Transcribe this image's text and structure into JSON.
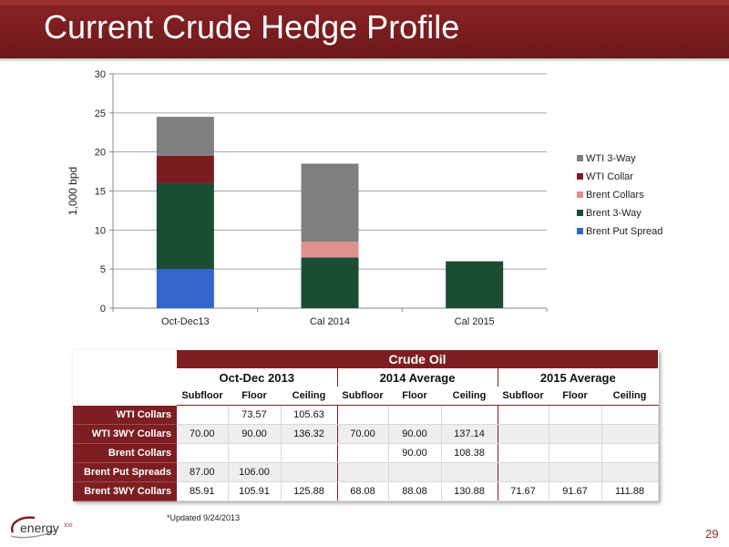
{
  "slide": {
    "title": "Current Crude Hedge Profile",
    "footnote": "*Updated 9/24/2013",
    "page_number": "29",
    "logo_text": "energy",
    "logo_suffix": "XXI"
  },
  "colors": {
    "title_bar": "#7a1d20",
    "table_header": "#7d1f22",
    "wti_3way": "#7f7f7f",
    "wti_collar": "#7a1d20",
    "brent_collars": "#e0908d",
    "brent_3way": "#1a4d33",
    "brent_put_spread": "#3366cc"
  },
  "chart_data": {
    "type": "bar",
    "stacked": true,
    "categories": [
      "Oct-Dec13",
      "Cal 2014",
      "Cal 2015"
    ],
    "series": [
      {
        "name": "Brent Put Spread",
        "values": [
          5,
          0,
          0
        ],
        "color": "#3366cc"
      },
      {
        "name": "Brent 3-Way",
        "values": [
          11,
          6.5,
          6
        ],
        "color": "#1a4d33"
      },
      {
        "name": "Brent Collars",
        "values": [
          0,
          2,
          0
        ],
        "color": "#e0908d"
      },
      {
        "name": "WTI Collar",
        "values": [
          3.5,
          0,
          0
        ],
        "color": "#7a1d20"
      },
      {
        "name": "WTI 3-Way",
        "values": [
          5,
          10,
          0
        ],
        "color": "#7f7f7f"
      }
    ],
    "legend_order": [
      "WTI 3-Way",
      "WTI Collar",
      "Brent Collars",
      "Brent 3-Way",
      "Brent Put Spread"
    ],
    "ylabel": "1,000 bpd",
    "xlabel": "",
    "ylim": [
      0,
      30
    ],
    "yticks": [
      "0",
      "5",
      "10",
      "15",
      "20",
      "25",
      "30"
    ],
    "grid": true,
    "legend_position": "right"
  },
  "table": {
    "title": "Crude Oil",
    "periods": [
      "Oct-Dec 2013",
      "2014 Average",
      "2015 Average"
    ],
    "subheaders": [
      "Subfloor",
      "Floor",
      "Ceiling"
    ],
    "rows": [
      {
        "label": "WTI Collars",
        "cells": [
          "",
          "73.57",
          "105.63",
          "",
          "",
          "",
          "",
          "",
          ""
        ]
      },
      {
        "label": "WTI 3WY Collars",
        "cells": [
          "70.00",
          "90.00",
          "136.32",
          "70.00",
          "90.00",
          "137.14",
          "",
          "",
          ""
        ]
      },
      {
        "label": "Brent Collars",
        "cells": [
          "",
          "",
          "",
          "",
          "90.00",
          "108.38",
          "",
          "",
          ""
        ]
      },
      {
        "label": "Brent Put Spreads",
        "cells": [
          "87.00",
          "106.00",
          "",
          "",
          "",
          "",
          "",
          "",
          ""
        ]
      },
      {
        "label": "Brent 3WY Collars",
        "cells": [
          "85.91",
          "105.91",
          "125.88",
          "68.08",
          "88.08",
          "130.88",
          "71.67",
          "91.67",
          "111.88"
        ]
      }
    ]
  }
}
